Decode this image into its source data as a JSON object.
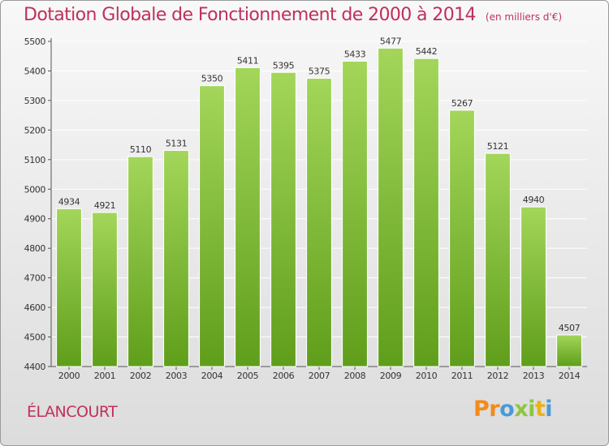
{
  "title": "Dotation Globale de Fonctionnement de 2000 à 2014",
  "unit_note": "(en milliers d'€)",
  "commune": "ÉLANCOURT",
  "brand": {
    "text": "Proxiti",
    "letters": [
      {
        "char": "P",
        "color": "#f28b1c"
      },
      {
        "char": "r",
        "color": "#f28b1c"
      },
      {
        "char": "o",
        "color": "#4a9ad8"
      },
      {
        "char": "x",
        "color": "#8cc63f"
      },
      {
        "char": "i",
        "color": "#8cc63f"
      },
      {
        "char": "t",
        "color": "#e8b21a"
      },
      {
        "char": "i",
        "color": "#4a9ad8"
      }
    ]
  },
  "colors": {
    "bar_top": "#a3d65a",
    "bar_bottom": "#5f9e1a",
    "title": "#c0305a",
    "grid": "#ffffff",
    "text": "#333333"
  },
  "chart_data": {
    "type": "bar",
    "title": "Dotation Globale de Fonctionnement de 2000 à 2014",
    "subtitle": "(en milliers d'€)",
    "categories": [
      "2000",
      "2001",
      "2002",
      "2003",
      "2004",
      "2005",
      "2006",
      "2007",
      "2008",
      "2009",
      "2010",
      "2011",
      "2012",
      "2013",
      "2014"
    ],
    "values": [
      4934,
      4921,
      5110,
      5131,
      5350,
      5411,
      5395,
      5375,
      5433,
      5477,
      5442,
      5267,
      5121,
      4940,
      4507
    ],
    "ylim": [
      4400,
      5500
    ],
    "yticks": [
      4400,
      4500,
      4600,
      4700,
      4800,
      4900,
      5000,
      5100,
      5200,
      5300,
      5400,
      5500
    ],
    "grid": true,
    "xlabel": "",
    "ylabel": ""
  }
}
